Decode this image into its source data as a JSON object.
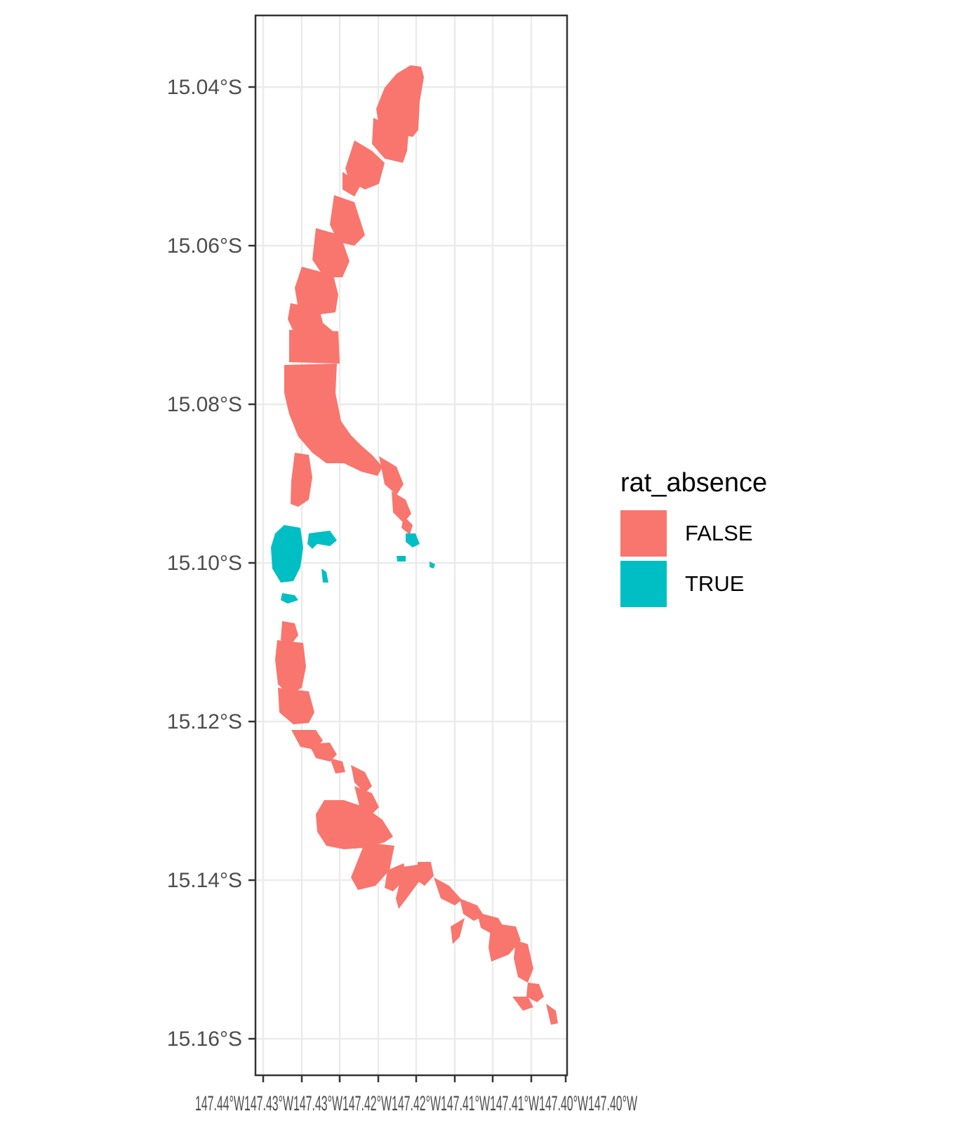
{
  "chart_data": {
    "type": "map",
    "title": "",
    "xlabel": "",
    "ylabel": "",
    "y_ticks": [
      {
        "value": -15.04,
        "label": "15.04°S"
      },
      {
        "value": -15.06,
        "label": "15.06°S"
      },
      {
        "value": -15.08,
        "label": "15.08°S"
      },
      {
        "value": -15.1,
        "label": "15.10°S"
      },
      {
        "value": -15.12,
        "label": "15.12°S"
      },
      {
        "value": -15.14,
        "label": "15.14°S"
      },
      {
        "value": -15.16,
        "label": "15.16°S"
      }
    ],
    "x_tick_labels_overlapping": "147.44°W147.43°W147.43°W147.42°W147.42°W147.41°W147.41°W147.40°W147.40°W",
    "legend": {
      "title": "rat_absence",
      "placement": "right",
      "entries": [
        {
          "label": "FALSE",
          "color": "#F8766D"
        },
        {
          "label": "TRUE",
          "color": "#00BFC4"
        }
      ]
    },
    "colors": {
      "false": "#F8766D",
      "true": "#00BFC4",
      "grid": "#ebebeb",
      "panel_border": "#333333"
    },
    "grid": true
  }
}
